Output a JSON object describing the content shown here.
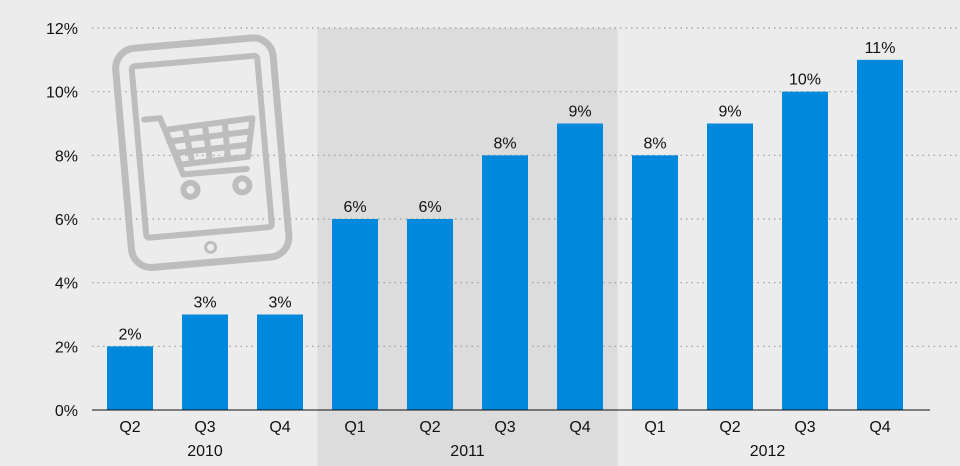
{
  "chart_data": {
    "type": "bar",
    "categories": [
      "Q2",
      "Q3",
      "Q4",
      "Q1",
      "Q2",
      "Q3",
      "Q4",
      "Q1",
      "Q2",
      "Q3",
      "Q4"
    ],
    "years": [
      {
        "label": "2010",
        "start": 0,
        "end": 2
      },
      {
        "label": "2011",
        "start": 3,
        "end": 6,
        "shaded": true
      },
      {
        "label": "2012",
        "start": 7,
        "end": 10
      }
    ],
    "values": [
      2,
      3,
      3,
      6,
      6,
      8,
      9,
      8,
      9,
      10,
      11
    ],
    "value_labels": [
      "2%",
      "3%",
      "3%",
      "6%",
      "6%",
      "8%",
      "9%",
      "8%",
      "9%",
      "10%",
      "11%"
    ],
    "yticks": [
      0,
      2,
      4,
      6,
      8,
      10,
      12
    ],
    "ytick_labels": [
      "0%",
      "2%",
      "4%",
      "6%",
      "8%",
      "10%",
      "12%"
    ],
    "ylim": [
      0,
      12
    ],
    "grid": true,
    "colors": {
      "bar": "#0088dd",
      "background": "#ececec",
      "year_shade": "#dcdcdc",
      "icon": "#bdbdbd"
    },
    "decoration_icon": "tablet-shopping-cart-icon"
  }
}
